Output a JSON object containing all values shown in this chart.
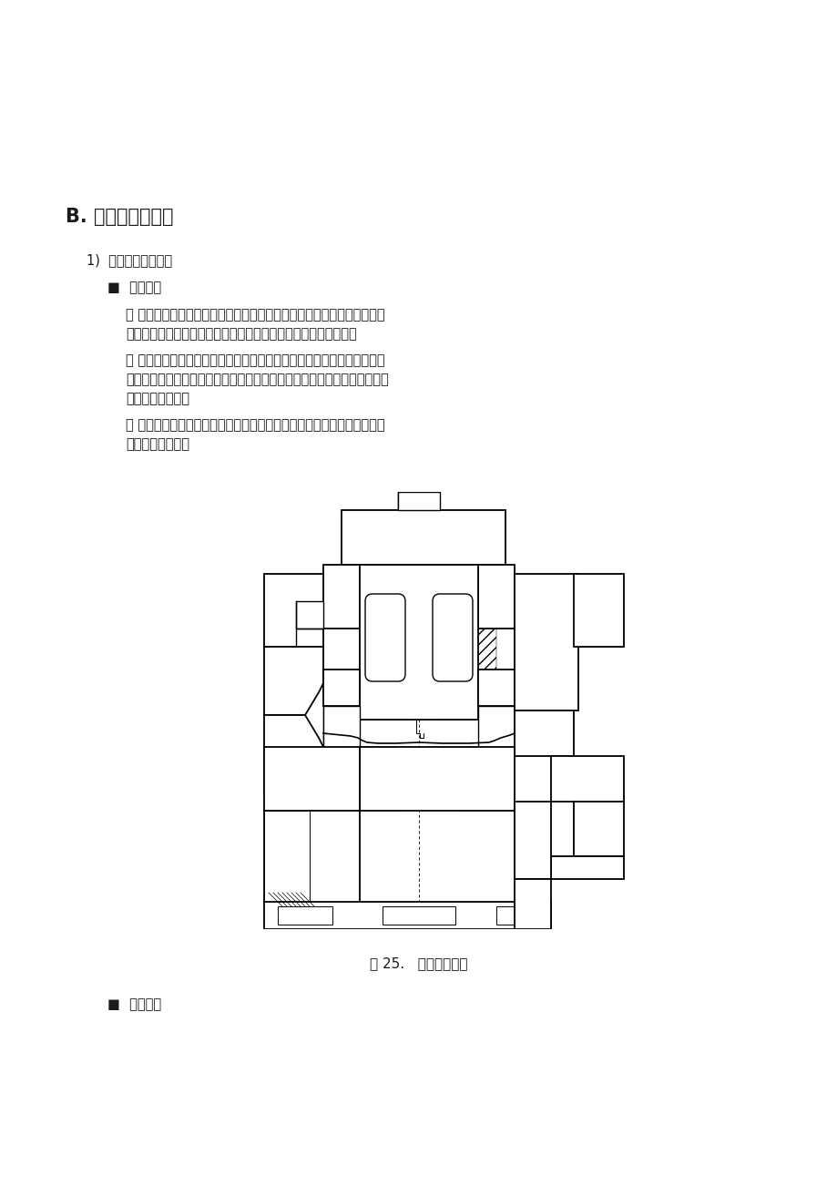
{
  "title": "B. 拉延工序的种类",
  "section1": "1)  根据压力源的分类",
  "bullet1": "■  双动拉延",
  "dash1_line1": "－ 主要使用在大型冲压板件的形态，滑块为内外的２种，外滑块固定压边",
  "dash1_line2": "　　圈，内滑块固定凸模。根据情况外滑块也有可能设置在下型。",
  "dash2_line1": "－ 因压边圈的压力大，能有一定量的力，容易成型，所以适合复杂形象的",
  "dash2_line2": "　　拉延上，但后工序要反过来投入，且有比单动式速度慢的弱点，所以现",
  "dash2_line3": "　　在还不使用。",
  "dash3_line1": "－ 因下型不动，为防止材料下塌的材料支板，或取出容易的各种装备的设",
  "dash3_line2": "　　置比较容易。",
  "fig_caption": "图 25.   双动拉延模具",
  "bullet2": "■  单动拉延",
  "bg_color": "#ffffff",
  "text_color": "#1a1a1a",
  "title_fontsize": 15,
  "body_fontsize": 10.5,
  "caption_fontsize": 11
}
